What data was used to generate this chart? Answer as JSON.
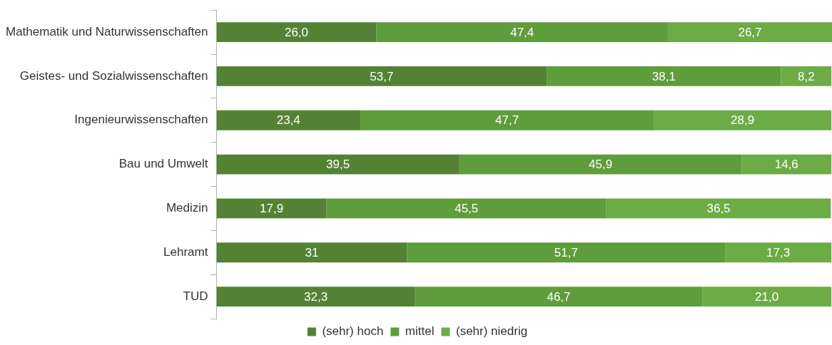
{
  "chart_data": {
    "type": "bar",
    "orientation": "horizontal",
    "stacked": true,
    "categories": [
      "Mathematik und Naturwissenschaften",
      "Geistes- und Sozialwissenschaften",
      "Ingenieurwissenschaften",
      "Bau und Umwelt",
      "Medizin",
      "Lehramt",
      "TUD"
    ],
    "series": [
      {
        "name": "(sehr) hoch",
        "color": "#548235",
        "values": [
          26.0,
          53.7,
          23.4,
          39.5,
          17.9,
          31,
          32.3
        ],
        "value_labels": [
          "26,0",
          "53,7",
          "23,4",
          "39,5",
          "17,9",
          "31",
          "32,3"
        ]
      },
      {
        "name": "mittel",
        "color": "#5f9c3b",
        "values": [
          47.4,
          38.1,
          47.7,
          45.9,
          45.5,
          51.7,
          46.7
        ],
        "value_labels": [
          "47,4",
          "38,1",
          "47,7",
          "45,9",
          "45,5",
          "51,7",
          "46,7"
        ]
      },
      {
        "name": "(sehr) niedrig",
        "color": "#6cab46",
        "values": [
          26.7,
          8.2,
          28.9,
          14.6,
          36.5,
          17.3,
          21.0
        ],
        "value_labels": [
          "26,7",
          "8,2",
          "28,9",
          "14,6",
          "36,5",
          "17,3",
          "21,0"
        ]
      }
    ],
    "xlim": [
      0,
      100.1
    ],
    "grid": false,
    "legend": "bottom",
    "tick_labels": "y"
  }
}
